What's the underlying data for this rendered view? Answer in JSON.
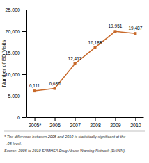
{
  "chart_data": {
    "type": "line",
    "categories": [
      "2005*",
      "2006",
      "2007",
      "2008",
      "2009",
      "2010"
    ],
    "values": [
      6111,
      6680,
      12417,
      16188,
      19951,
      19487
    ],
    "value_labels": [
      "6,111",
      "6,680",
      "12,417",
      "16,188",
      "19,951",
      "19,487"
    ],
    "data_labels": true,
    "color": "#c8692a",
    "marker": "square",
    "line_style": "solid",
    "ylabel": "Number of ED Visits",
    "ylim": [
      0,
      25000
    ],
    "yticks": [
      0,
      {
        "value": 5000,
        "label": "5,000"
      },
      {
        "value": 10000,
        "label": "10,000"
      },
      {
        "value": 15000,
        "label": "15,000"
      },
      {
        "value": 20000,
        "label": "20,000"
      },
      {
        "value": 25000,
        "label": "25,000"
      }
    ],
    "grid": false,
    "annotations": [
      "* The difference between 2005 and 2010 is statistically significant at the",
      "  .05 level.",
      "Source: 2005 to 2010 SAMHSA Drug Abuse Warning Network (DAWN)."
    ]
  }
}
